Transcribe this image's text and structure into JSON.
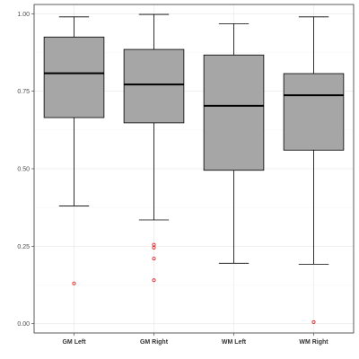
{
  "chart_data": {
    "type": "boxplot",
    "title": "",
    "xlabel": "",
    "ylabel": "",
    "ylim": [
      -0.03,
      1.03
    ],
    "yticks": [
      0.0,
      0.25,
      0.5,
      0.75,
      1.0
    ],
    "ytick_labels": [
      "0.00",
      "0.25",
      "0.50",
      "0.75",
      "1.00"
    ],
    "categories": [
      "GM Left",
      "GM Right",
      "WM Left",
      "WM Right"
    ],
    "grid": true,
    "legend": "none",
    "colors": {
      "box_fill": "#a6a6a6",
      "outline": "#000000",
      "outlier": "#e31a1c",
      "grid": "#e6e6e6",
      "panel_border": "#333333"
    },
    "boxes": [
      {
        "category": "GM Left",
        "whisker_low": 0.38,
        "q1": 0.665,
        "median": 0.808,
        "q3": 0.925,
        "whisker_high": 0.99,
        "outliers": [
          0.13
        ]
      },
      {
        "category": "GM Right",
        "whisker_low": 0.335,
        "q1": 0.648,
        "median": 0.772,
        "q3": 0.885,
        "whisker_high": 0.998,
        "outliers": [
          0.14,
          0.21,
          0.245,
          0.255
        ]
      },
      {
        "category": "WM Left",
        "whisker_low": 0.195,
        "q1": 0.495,
        "median": 0.703,
        "q3": 0.867,
        "whisker_high": 0.968,
        "outliers": []
      },
      {
        "category": "WM Right",
        "whisker_low": 0.192,
        "q1": 0.56,
        "median": 0.737,
        "q3": 0.807,
        "whisker_high": 0.99,
        "outliers": [
          0.005
        ]
      }
    ]
  }
}
